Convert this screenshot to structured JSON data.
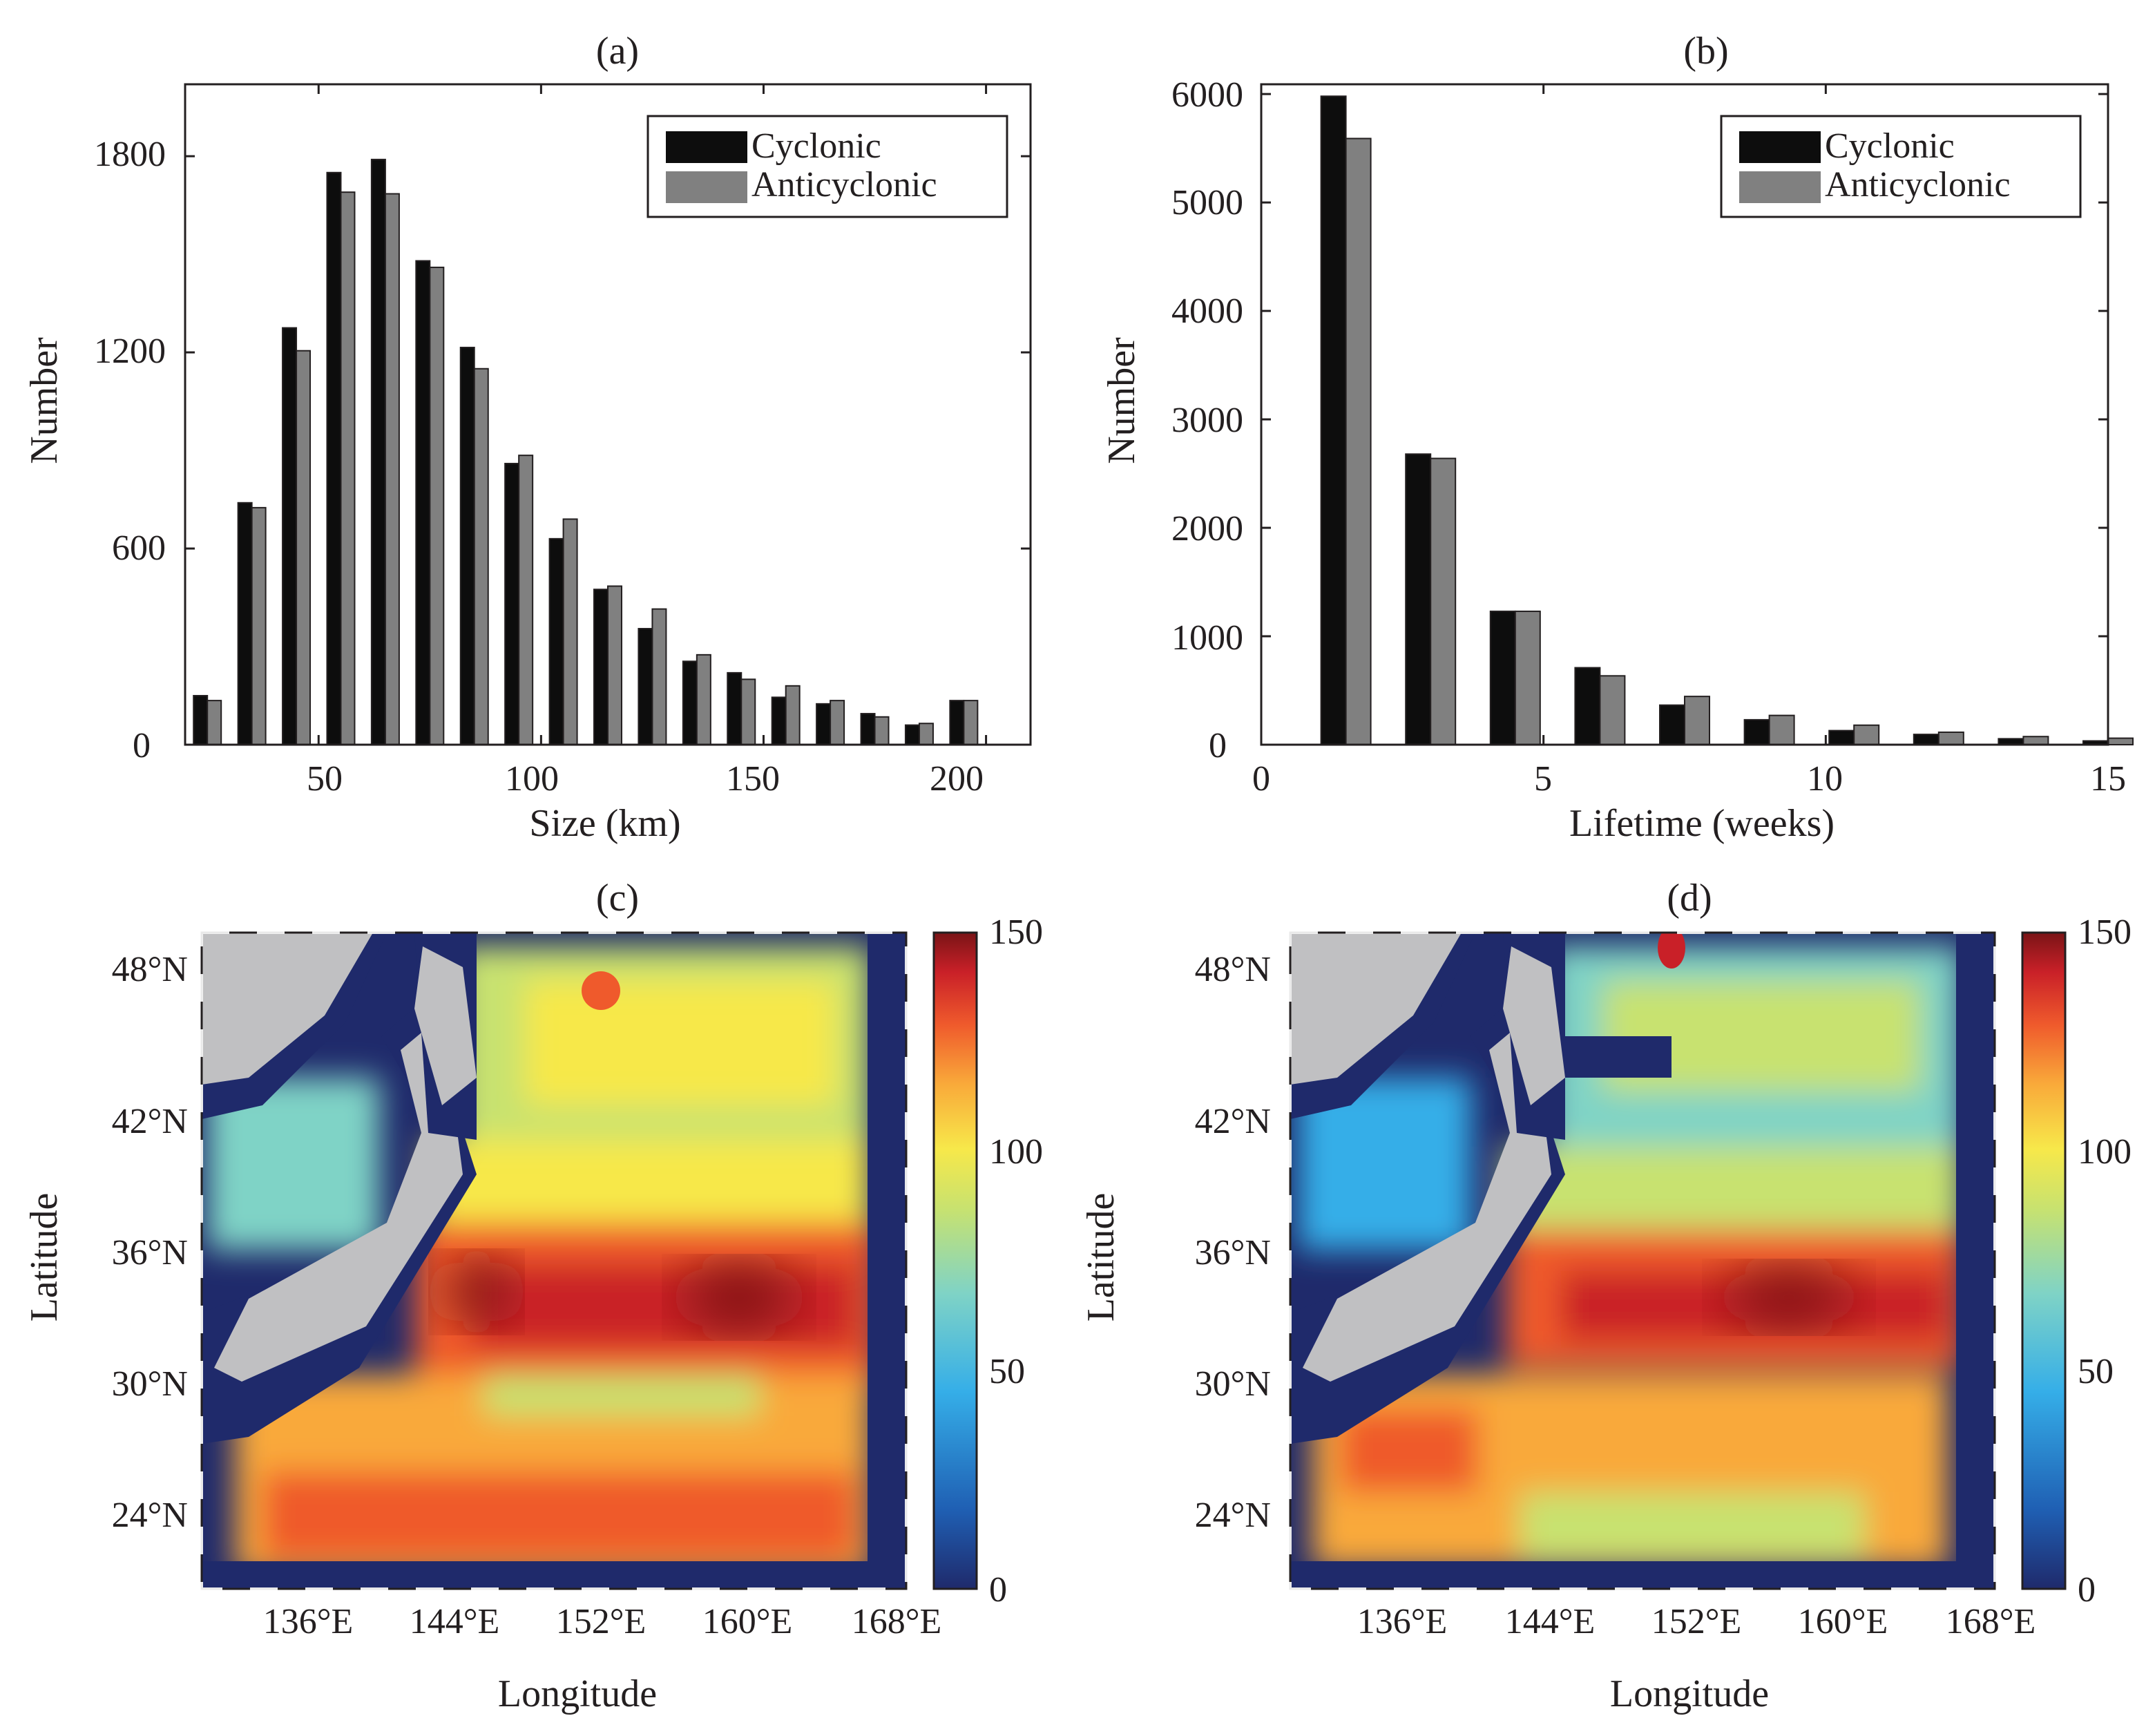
{
  "figure": "four-panel eddy statistics figure",
  "colors": {
    "cyclonic": "#0d0d0d",
    "anticyclonic": "#808080",
    "land": "#c0c0c2",
    "frame": "#231f20",
    "colormap": [
      "#1f2a6b",
      "#1f5fb3",
      "#35aee8",
      "#7fd3c6",
      "#c8e26f",
      "#f7e84a",
      "#f9a93a",
      "#ef5a2c",
      "#c92028",
      "#7a1416"
    ]
  },
  "chart_data": [
    {
      "id": "a",
      "type": "bar",
      "title": "(a)",
      "xlabel": "Size (km)",
      "ylabel": "Number",
      "xlim": [
        20,
        210
      ],
      "ylim": [
        0,
        2020
      ],
      "xticks": [
        "50",
        "100",
        "150",
        "200"
      ],
      "xtick_values": [
        50,
        100,
        150,
        200
      ],
      "yticks": [
        "0",
        "600",
        "1200",
        "1800"
      ],
      "ytick_values": [
        0,
        600,
        1200,
        1800
      ],
      "categories": [
        25,
        35,
        45,
        55,
        65,
        75,
        85,
        95,
        105,
        115,
        125,
        135,
        145,
        155,
        165,
        175,
        185,
        195
      ],
      "series": [
        {
          "name": "Cyclonic",
          "values": [
            150,
            740,
            1275,
            1750,
            1790,
            1480,
            1215,
            860,
            630,
            475,
            355,
            255,
            220,
            145,
            125,
            95,
            60,
            135
          ]
        },
        {
          "name": "Anticyclonic",
          "values": [
            135,
            725,
            1205,
            1690,
            1685,
            1460,
            1150,
            885,
            690,
            485,
            415,
            275,
            200,
            180,
            135,
            85,
            65,
            135
          ]
        }
      ],
      "legend": [
        "Cyclonic",
        "Anticyclonic"
      ],
      "legend_position": "top-right"
    },
    {
      "id": "b",
      "type": "bar",
      "title": "(b)",
      "xlabel": "Lifetime (weeks)",
      "ylabel": "Number",
      "xlim": [
        0,
        15
      ],
      "ylim": [
        0,
        6090
      ],
      "xticks": [
        "0",
        "5",
        "10",
        "15"
      ],
      "xtick_values": [
        0,
        5,
        10,
        15
      ],
      "yticks": [
        "0",
        "1000",
        "2000",
        "3000",
        "4000",
        "5000",
        "6000"
      ],
      "ytick_values": [
        0,
        1000,
        2000,
        3000,
        4000,
        5000,
        6000
      ],
      "categories": [
        1.5,
        3,
        4.5,
        6,
        7.5,
        9,
        10.5,
        12,
        13.5,
        15
      ],
      "series": [
        {
          "name": "Cyclonic",
          "values": [
            5980,
            2680,
            1230,
            710,
            365,
            230,
            130,
            95,
            55,
            35
          ]
        },
        {
          "name": "Anticyclonic",
          "values": [
            5590,
            2640,
            1230,
            635,
            445,
            270,
            180,
            115,
            75,
            60
          ]
        }
      ],
      "legend": [
        "Cyclonic",
        "Anticyclonic"
      ],
      "legend_position": "top-right"
    },
    {
      "id": "c",
      "type": "heatmap",
      "title": "(c)",
      "xlabel": "Longitude",
      "ylabel": "Latitude",
      "xticks": [
        "136°E",
        "144°E",
        "152°E",
        "160°E",
        "168°E"
      ],
      "xtick_values": [
        136,
        144,
        152,
        160,
        168
      ],
      "yticks": [
        "24°N",
        "30°N",
        "36°N",
        "42°N",
        "48°N"
      ],
      "ytick_values": [
        24,
        30,
        36,
        42,
        48
      ],
      "xlim": [
        128,
        169
      ],
      "ylim": [
        20,
        50
      ],
      "colorbar_ticks": [
        "0",
        "50",
        "100",
        "150"
      ],
      "colorbar_values": [
        0,
        50,
        100,
        150
      ],
      "clim": [
        0,
        150
      ],
      "field_notes": "high band near 33-36N, 144-165E (~130-150); southern region 22-29N ~100-120; northern region ~70-95"
    },
    {
      "id": "d",
      "type": "heatmap",
      "title": "(d)",
      "xlabel": "Longitude",
      "ylabel": "Latitude",
      "xticks": [
        "136°E",
        "144°E",
        "152°E",
        "160°E",
        "168°E"
      ],
      "xtick_values": [
        136,
        144,
        152,
        160,
        168
      ],
      "yticks": [
        "24°N",
        "30°N",
        "36°N",
        "42°N",
        "48°N"
      ],
      "ytick_values": [
        24,
        30,
        36,
        42,
        48
      ],
      "xlim": [
        128,
        169
      ],
      "ylim": [
        20,
        50
      ],
      "colorbar_ticks": [
        "0",
        "50",
        "100",
        "150"
      ],
      "colorbar_values": [
        0,
        50,
        100,
        150
      ],
      "clim": [
        0,
        150
      ],
      "field_notes": "high band near 32-35N, 145-166E (~120-145); southern region 24-30N ~100-120; northern region ~60-80"
    }
  ]
}
